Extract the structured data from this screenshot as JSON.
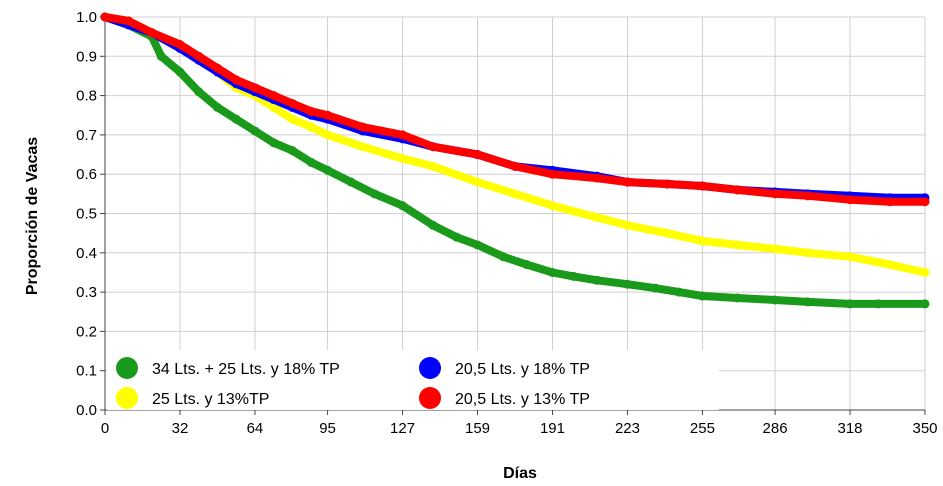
{
  "chart_data": {
    "type": "line",
    "xlabel": "Días",
    "ylabel": "Proporción de Vacas",
    "xlim": [
      0,
      350
    ],
    "ylim": [
      0,
      1.0
    ],
    "x_ticks": [
      0,
      32,
      64,
      95,
      127,
      159,
      191,
      223,
      255,
      286,
      318,
      350
    ],
    "x_tick_labels": [
      "0",
      "32",
      "64",
      "95",
      "127",
      "159",
      "191",
      "223",
      "255",
      "286",
      "318",
      "350"
    ],
    "y_ticks": [
      0,
      0.1,
      0.2,
      0.3,
      0.4,
      0.5,
      0.6,
      0.7,
      0.8,
      0.9,
      1.0
    ],
    "y_tick_labels": [
      "0.0",
      "0.1",
      "0.2",
      "0.3",
      "0.4",
      "0.5",
      "0.6",
      "0.7",
      "0.8",
      "0.9",
      "1.0"
    ],
    "grid": true,
    "legend_position": "bottom-left",
    "series": [
      {
        "name": "34 Lts. + 25 Lts. y 18% TP",
        "color": "#1a9a1a",
        "x": [
          0,
          10,
          20,
          24,
          32,
          40,
          48,
          56,
          64,
          72,
          80,
          88,
          95,
          105,
          115,
          127,
          140,
          150,
          159,
          170,
          180,
          191,
          200,
          210,
          223,
          235,
          245,
          255,
          270,
          286,
          300,
          318,
          330,
          350
        ],
        "y": [
          1.0,
          0.98,
          0.95,
          0.9,
          0.86,
          0.81,
          0.77,
          0.74,
          0.71,
          0.68,
          0.66,
          0.63,
          0.61,
          0.58,
          0.55,
          0.52,
          0.47,
          0.44,
          0.42,
          0.39,
          0.37,
          0.35,
          0.34,
          0.33,
          0.32,
          0.31,
          0.3,
          0.29,
          0.285,
          0.28,
          0.275,
          0.27,
          0.27,
          0.27
        ]
      },
      {
        "name": "25 Lts. y 13%TP",
        "color": "#ffff00",
        "x": [
          0,
          10,
          20,
          32,
          40,
          48,
          56,
          64,
          72,
          80,
          88,
          95,
          110,
          127,
          140,
          159,
          175,
          191,
          210,
          223,
          240,
          255,
          270,
          286,
          300,
          318,
          335,
          350
        ],
        "y": [
          1.0,
          0.99,
          0.96,
          0.92,
          0.89,
          0.86,
          0.82,
          0.8,
          0.77,
          0.74,
          0.72,
          0.7,
          0.67,
          0.64,
          0.62,
          0.58,
          0.55,
          0.52,
          0.49,
          0.47,
          0.45,
          0.43,
          0.42,
          0.41,
          0.4,
          0.39,
          0.37,
          0.35
        ]
      },
      {
        "name": "20,5 Lts. y 18% TP",
        "color": "#0000ff",
        "x": [
          0,
          10,
          20,
          32,
          40,
          48,
          56,
          64,
          72,
          80,
          88,
          95,
          110,
          127,
          140,
          159,
          175,
          191,
          210,
          223,
          240,
          255,
          270,
          286,
          300,
          318,
          335,
          350
        ],
        "y": [
          1.0,
          0.98,
          0.96,
          0.92,
          0.89,
          0.86,
          0.83,
          0.81,
          0.79,
          0.77,
          0.75,
          0.74,
          0.71,
          0.69,
          0.67,
          0.65,
          0.62,
          0.61,
          0.595,
          0.58,
          0.575,
          0.57,
          0.56,
          0.555,
          0.55,
          0.545,
          0.54,
          0.54
        ]
      },
      {
        "name": "20,5 Lts. y 13% TP",
        "color": "#ff0000",
        "x": [
          0,
          10,
          20,
          32,
          40,
          48,
          56,
          64,
          72,
          80,
          88,
          95,
          110,
          127,
          140,
          159,
          175,
          191,
          210,
          223,
          240,
          255,
          270,
          286,
          300,
          318,
          335,
          350
        ],
        "y": [
          1.0,
          0.99,
          0.96,
          0.93,
          0.9,
          0.87,
          0.84,
          0.82,
          0.8,
          0.78,
          0.76,
          0.75,
          0.72,
          0.7,
          0.67,
          0.65,
          0.62,
          0.6,
          0.59,
          0.58,
          0.575,
          0.57,
          0.56,
          0.55,
          0.545,
          0.535,
          0.53,
          0.53
        ]
      }
    ]
  }
}
